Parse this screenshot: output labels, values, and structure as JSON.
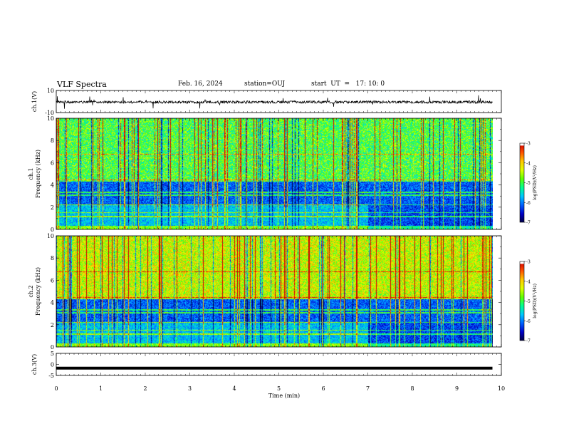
{
  "header": {
    "title": "VLF Spectra",
    "date": "Feb. 16, 2024",
    "station": "station=OUJ",
    "start": "start  UT  =   17: 10: 0"
  },
  "chart_data": [
    {
      "id": "ch1-waveform",
      "type": "line",
      "ylabel": "ch.1(V)",
      "y_ticks": [
        "10",
        "-10"
      ],
      "ylim": [
        -10,
        10
      ],
      "xlim": [
        0,
        10
      ],
      "trace_level": -0.5,
      "data_extent_x": [
        0,
        9.8
      ]
    },
    {
      "id": "ch1-spectrogram",
      "type": "heatmap",
      "ylabel": "ch.1\nFrequency (kHz)",
      "ylabel_lines": [
        "ch.1",
        "Frequency (kHz)"
      ],
      "y_ticks": [
        "0",
        "2",
        "4",
        "6",
        "8",
        "10"
      ],
      "ylim": [
        0,
        10
      ],
      "xlim": [
        0,
        10
      ],
      "data_extent_x": [
        0,
        9.8
      ],
      "colorbar": {
        "label": "log(PSD)(V²/Hz)",
        "ticks": [
          "-3",
          "-4",
          "-5",
          "-6",
          "-7"
        ],
        "range": [
          -7,
          -3
        ]
      }
    },
    {
      "id": "ch2-spectrogram",
      "type": "heatmap",
      "ylabel": "ch.2\nFrequency (kHz)",
      "ylabel_lines": [
        "ch.2",
        "Frequency (kHz)"
      ],
      "y_ticks": [
        "0",
        "2",
        "4",
        "6",
        "8",
        "10"
      ],
      "ylim": [
        0,
        10
      ],
      "xlim": [
        0,
        10
      ],
      "data_extent_x": [
        0,
        9.8
      ],
      "colorbar": {
        "label": "log(PSD)(V²/Hz)",
        "ticks": [
          "-3",
          "-4",
          "-5",
          "-6",
          "-7"
        ],
        "range": [
          -7,
          -3
        ]
      }
    },
    {
      "id": "ch3-waveform",
      "type": "line",
      "ylabel": "ch.3(V)",
      "y_ticks": [
        "5",
        "0",
        "-5"
      ],
      "ylim": [
        -5,
        5
      ],
      "xlim": [
        0,
        10
      ],
      "trace_level": -1.7,
      "data_extent_x": [
        0,
        9.8
      ]
    }
  ],
  "x_axis": {
    "label": "Time (min)",
    "ticks": [
      "0",
      "1",
      "2",
      "3",
      "4",
      "5",
      "6",
      "7",
      "8",
      "9",
      "10"
    ]
  },
  "colors": {
    "colormap": [
      "#00003c",
      "#0000c8",
      "#0060ff",
      "#00c8ff",
      "#00ff90",
      "#60ff00",
      "#e0ff00",
      "#ffc800",
      "#ff5000",
      "#d00000",
      "#ffffff"
    ],
    "trace": "#000000"
  }
}
